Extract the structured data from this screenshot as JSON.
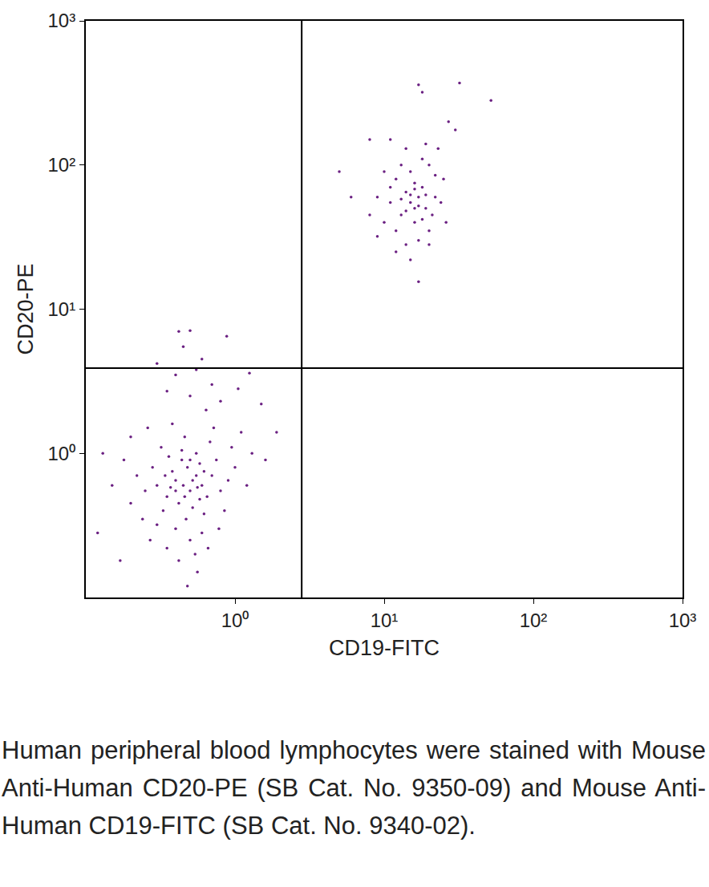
{
  "chart_data": {
    "type": "scatter",
    "x_label": "CD19-FITC",
    "y_label": "CD20-PE",
    "caption": "Human peripheral blood lymphocytes were stained with Mouse Anti-Human CD20-PE (SB Cat. No. 9350-09) and Mouse Anti-Human CD19-FITC (SB Cat. No. 9340-02).",
    "log": true,
    "grid": false,
    "color": "#6b2082",
    "marker": "circle",
    "xlim": [
      0.1,
      1000
    ],
    "ylim": [
      0.1,
      1000
    ],
    "xticks": [
      {
        "value": 1,
        "label": "10⁰"
      },
      {
        "value": 10,
        "label": "10¹"
      },
      {
        "value": 100,
        "label": "10²"
      },
      {
        "value": 1000,
        "label": "10³"
      }
    ],
    "yticks": [
      {
        "value": 1,
        "label": "10⁰"
      },
      {
        "value": 10,
        "label": "10¹"
      },
      {
        "value": 100,
        "label": "10²"
      },
      {
        "value": 1000,
        "label": "10³"
      }
    ],
    "quadrant_x": 2.8,
    "quadrant_y": 3.9,
    "x": [
      0.45,
      0.5,
      0.4,
      0.55,
      0.35,
      0.6,
      0.48,
      0.42,
      0.52,
      0.38,
      0.3,
      0.65,
      0.58,
      0.44,
      0.33,
      0.7,
      0.47,
      0.36,
      0.62,
      0.28,
      0.55,
      0.4,
      0.75,
      0.25,
      0.5,
      0.32,
      0.8,
      0.68,
      0.22,
      0.46,
      0.6,
      0.9,
      0.3,
      0.2,
      0.85,
      0.54,
      0.38,
      0.72,
      1.0,
      0.18,
      0.27,
      0.95,
      0.42,
      0.64,
      0.5,
      1.2,
      1.1,
      0.15,
      0.13,
      0.35,
      0.78,
      0.56,
      0.48,
      1.3,
      1.5,
      1.9,
      1.6,
      0.7,
      0.4,
      0.55,
      0.45,
      0.5,
      0.42,
      0.6,
      0.88,
      0.3,
      0.2,
      0.24,
      0.26,
      1.05,
      1.25,
      0.12,
      0.17,
      0.8,
      0.66,
      0.35,
      0.46,
      0.52,
      0.4,
      0.58,
      0.34,
      0.62,
      0.44,
      0.5,
      0.37,
      0.56,
      15,
      17,
      13,
      18,
      16,
      14,
      19,
      12,
      20,
      15,
      11,
      22,
      17,
      13,
      16,
      10,
      21,
      14,
      18,
      12,
      9,
      24,
      15,
      17,
      8,
      11,
      10,
      14,
      19,
      23,
      27,
      30,
      17,
      18,
      32,
      52,
      5,
      6,
      8,
      9,
      12,
      20,
      25,
      26,
      16,
      15,
      17,
      14,
      16,
      13,
      19,
      18,
      11,
      22,
      20
    ],
    "y": [
      0.6,
      0.55,
      0.65,
      0.7,
      0.5,
      0.6,
      0.8,
      0.45,
      0.42,
      0.75,
      0.6,
      0.5,
      0.85,
      0.9,
      0.4,
      0.7,
      0.35,
      0.95,
      0.38,
      0.8,
      1.0,
      0.3,
      0.9,
      0.55,
      0.25,
      1.1,
      0.55,
      1.2,
      0.7,
      1.3,
      0.28,
      0.65,
      0.32,
      0.45,
      0.4,
      0.2,
      1.6,
      1.5,
      0.8,
      0.9,
      0.25,
      1.1,
      0.18,
      2.0,
      2.5,
      0.6,
      1.4,
      0.6,
      1.0,
      0.22,
      0.3,
      0.15,
      0.12,
      1.0,
      2.2,
      1.4,
      0.9,
      3.0,
      3.5,
      3.8,
      5.5,
      7.1,
      7.0,
      4.5,
      6.5,
      4.2,
      1.3,
      0.35,
      1.5,
      2.8,
      3.6,
      0.28,
      0.18,
      2.3,
      0.22,
      2.7,
      0.5,
      0.65,
      0.55,
      0.48,
      0.7,
      0.75,
      1.05,
      0.9,
      0.58,
      0.58,
      55,
      60,
      45,
      70,
      40,
      65,
      50,
      80,
      35,
      90,
      55,
      60,
      30,
      100,
      75,
      40,
      45,
      28,
      110,
      35,
      60,
      55,
      22,
      15.5,
      150,
      150,
      90,
      130,
      140,
      130,
      200,
      175,
      360,
      320,
      370,
      280,
      90,
      60,
      45,
      32,
      25,
      28,
      80,
      40,
      50,
      62,
      52,
      48,
      68,
      58,
      62,
      42,
      70,
      85,
      100
    ]
  }
}
